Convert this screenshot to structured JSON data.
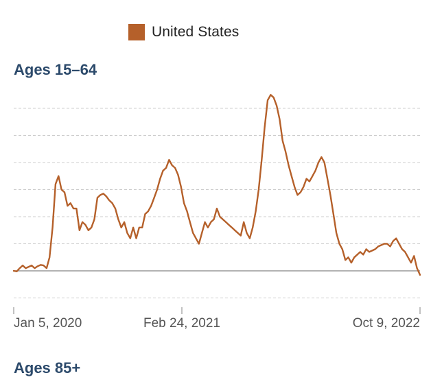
{
  "legend": {
    "label": "United States",
    "color": "#b5602a"
  },
  "panels": [
    {
      "title": "Ages 15–64"
    },
    {
      "title": "Ages 85+"
    }
  ],
  "colors": {
    "line": "#b5602a",
    "grid": "#cccccc",
    "baseline": "#999999",
    "title": "#2c4a6b",
    "tick": "#555555"
  },
  "chart_data": {
    "type": "line",
    "x_ticks": [
      "Jan 5, 2020",
      "Feb 24, 2021",
      "Oct 9, 2022"
    ],
    "y_tick_labels_shown": false,
    "grid": true,
    "legend_position": "top",
    "series": [
      {
        "name": "United States",
        "color": "#b5602a",
        "x_start": "Jan 5, 2020",
        "x_end": "Oct 9, 2022",
        "baseline_value": 0,
        "y_unit": "gridline steps above baseline",
        "values": [
          0,
          -0.02,
          0.1,
          0.2,
          0.1,
          0.15,
          0.2,
          0.1,
          0.17,
          0.22,
          0.2,
          0.1,
          0.5,
          1.6,
          3.2,
          3.5,
          3.0,
          2.9,
          2.4,
          2.5,
          2.3,
          2.3,
          1.5,
          1.8,
          1.7,
          1.5,
          1.6,
          1.9,
          2.7,
          2.8,
          2.85,
          2.75,
          2.6,
          2.5,
          2.3,
          1.9,
          1.6,
          1.8,
          1.4,
          1.2,
          1.6,
          1.2,
          1.6,
          1.6,
          2.1,
          2.2,
          2.4,
          2.7,
          3.0,
          3.4,
          3.7,
          3.8,
          4.1,
          3.9,
          3.8,
          3.55,
          3.1,
          2.5,
          2.2,
          1.8,
          1.4,
          1.2,
          1.0,
          1.4,
          1.8,
          1.6,
          1.8,
          1.9,
          2.3,
          2.0,
          1.9,
          1.8,
          1.7,
          1.6,
          1.5,
          1.4,
          1.3,
          1.8,
          1.4,
          1.2,
          1.6,
          2.2,
          3.0,
          4.1,
          5.3,
          6.3,
          6.5,
          6.4,
          6.1,
          5.6,
          4.8,
          4.4,
          3.9,
          3.5,
          3.1,
          2.8,
          2.9,
          3.1,
          3.4,
          3.3,
          3.5,
          3.7,
          4.0,
          4.2,
          4.0,
          3.4,
          2.8,
          2.1,
          1.4,
          1.0,
          0.8,
          0.4,
          0.5,
          0.3,
          0.5,
          0.6,
          0.7,
          0.6,
          0.8,
          0.7,
          0.75,
          0.8,
          0.9,
          0.95,
          1.0,
          1.0,
          0.9,
          1.1,
          1.2,
          1.0,
          0.8,
          0.7,
          0.5,
          0.3,
          0.55,
          0.1,
          -0.15
        ]
      }
    ]
  }
}
